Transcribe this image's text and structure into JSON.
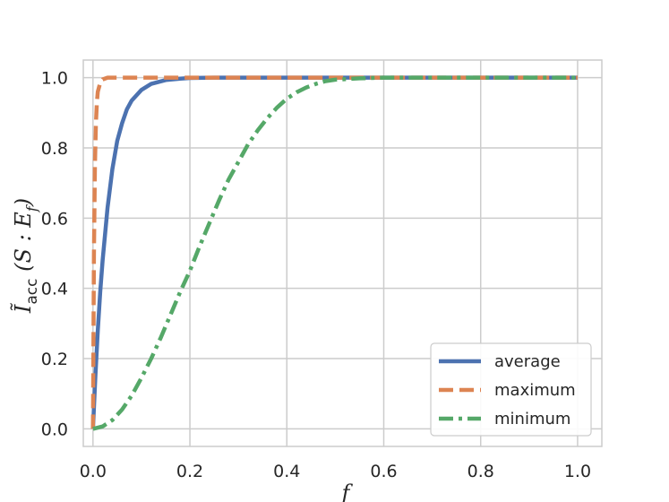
{
  "chart_data": {
    "type": "line",
    "title": "",
    "xlabel": "f",
    "ylabel": "Ĩacc(S: Ef)",
    "ylabel_parts": {
      "main": "Ĩ",
      "sub1": "acc",
      "paren_open": " (S : E",
      "sub2": "f",
      "paren_close": ")"
    },
    "xlim": [
      -0.02,
      1.05
    ],
    "ylim": [
      -0.05,
      1.05
    ],
    "x_ticks": [
      0.0,
      0.2,
      0.4,
      0.6,
      0.8,
      1.0
    ],
    "x_tick_labels": [
      "0.0",
      "0.2",
      "0.4",
      "0.6",
      "0.8",
      "1.0"
    ],
    "y_ticks": [
      0.0,
      0.2,
      0.4,
      0.6,
      0.8,
      1.0
    ],
    "y_tick_labels": [
      "0.0",
      "0.2",
      "0.4",
      "0.6",
      "0.8",
      "1.0"
    ],
    "grid": true,
    "legend_position": "bottom-right",
    "series": [
      {
        "name": "average",
        "color": "#4c72b0",
        "style": "solid",
        "x": [
          0,
          0.005,
          0.01,
          0.015,
          0.02,
          0.03,
          0.04,
          0.05,
          0.06,
          0.07,
          0.08,
          0.1,
          0.12,
          0.15,
          0.18,
          0.2,
          0.25,
          0.3,
          0.4,
          0.6,
          0.8,
          1.0
        ],
        "y": [
          0,
          0.15,
          0.28,
          0.39,
          0.48,
          0.63,
          0.74,
          0.82,
          0.87,
          0.91,
          0.935,
          0.965,
          0.982,
          0.993,
          0.997,
          0.999,
          1.0,
          1.0,
          1.0,
          1.0,
          1.0,
          1.0
        ]
      },
      {
        "name": "maximum",
        "color": "#dd8452",
        "style": "dashed",
        "x": [
          0,
          0.002,
          0.004,
          0.006,
          0.008,
          0.01,
          0.015,
          0.02,
          0.03,
          0.05,
          0.1,
          0.3,
          0.6,
          1.0
        ],
        "y": [
          0,
          0.5,
          0.75,
          0.87,
          0.93,
          0.96,
          0.985,
          0.995,
          1.0,
          1.0,
          1.0,
          1.0,
          1.0,
          1.0
        ]
      },
      {
        "name": "minimum",
        "color": "#55a868",
        "style": "dashdot",
        "x": [
          0,
          0.02,
          0.04,
          0.06,
          0.08,
          0.1,
          0.12,
          0.14,
          0.16,
          0.18,
          0.2,
          0.22,
          0.24,
          0.26,
          0.28,
          0.3,
          0.32,
          0.34,
          0.36,
          0.38,
          0.4,
          0.42,
          0.44,
          0.46,
          0.48,
          0.5,
          0.55,
          0.6,
          0.7,
          0.8,
          1.0
        ],
        "y": [
          0,
          0.007,
          0.025,
          0.055,
          0.095,
          0.145,
          0.2,
          0.26,
          0.325,
          0.39,
          0.45,
          0.52,
          0.585,
          0.65,
          0.71,
          0.76,
          0.81,
          0.85,
          0.885,
          0.915,
          0.94,
          0.958,
          0.972,
          0.982,
          0.99,
          0.994,
          0.998,
          1.0,
          1.0,
          1.0,
          1.0
        ]
      }
    ]
  }
}
